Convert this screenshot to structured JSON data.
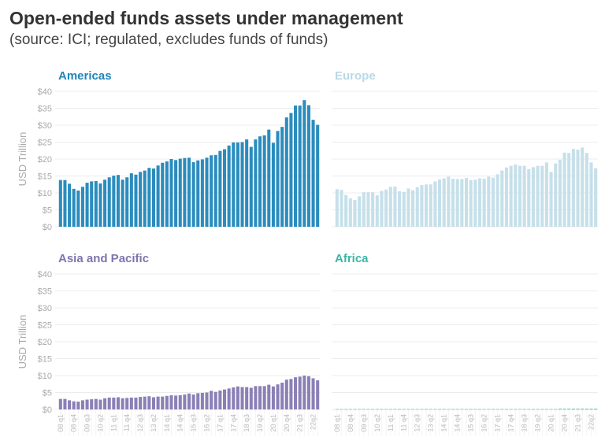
{
  "title": "Open-ended funds assets under management",
  "subtitle": "(source: ICI; regulated, excludes funds of funds)",
  "chart_data": {
    "type": "bar",
    "ylabel": "USD Trillion",
    "ylim": [
      0,
      40
    ],
    "yticks": [
      "$0",
      "$5",
      "$10",
      "$15",
      "$20",
      "$25",
      "$30",
      "$35",
      "$40"
    ],
    "grid": true,
    "x_tick_labels": [
      "08 q1",
      "08 q4",
      "09 q3",
      "10 q2",
      "11 q1",
      "11 q4",
      "12 q3",
      "13 q2",
      "14 q1",
      "14 q4",
      "15 q3",
      "16 q2",
      "17 q1",
      "17 q4",
      "18 q3",
      "19 q2",
      "20 q1",
      "20 q4",
      "21 q3",
      "22q2"
    ],
    "panels": [
      {
        "name": "Americas",
        "color": "#2b8cbe",
        "title_color": "#1f86b8",
        "values": [
          13.8,
          13.8,
          12.7,
          11.2,
          10.7,
          11.8,
          13.0,
          13.4,
          13.5,
          12.8,
          13.9,
          14.6,
          15.1,
          15.3,
          13.9,
          14.6,
          15.8,
          15.4,
          16.2,
          16.6,
          17.4,
          17.2,
          18.1,
          18.9,
          19.3,
          20.0,
          19.7,
          20.1,
          20.3,
          20.4,
          19.1,
          19.6,
          19.9,
          20.4,
          21.1,
          21.2,
          22.4,
          22.9,
          24.0,
          24.9,
          24.9,
          25.0,
          25.8,
          23.6,
          25.8,
          26.7,
          27.0,
          28.7,
          24.8,
          28.3,
          29.5,
          32.3,
          33.6,
          35.8,
          35.8,
          37.4,
          35.9,
          31.6,
          30.1
        ]
      },
      {
        "name": "Europe",
        "color": "#c6e0ea",
        "title_color": "#b9d9e6",
        "values": [
          11.1,
          10.9,
          9.4,
          8.4,
          7.9,
          9.0,
          10.2,
          10.2,
          10.2,
          9.3,
          10.6,
          11.0,
          11.8,
          11.9,
          10.5,
          10.3,
          11.3,
          10.8,
          11.7,
          12.3,
          12.5,
          12.5,
          13.4,
          14.0,
          14.3,
          14.8,
          14.2,
          14.1,
          14.1,
          14.4,
          13.8,
          13.9,
          14.3,
          14.2,
          14.8,
          14.5,
          15.5,
          16.6,
          17.5,
          18.0,
          18.4,
          18.0,
          18.0,
          17.0,
          17.6,
          18.0,
          18.0,
          19.0,
          16.2,
          18.7,
          19.8,
          21.9,
          21.8,
          23.0,
          22.8,
          23.4,
          21.8,
          19.0,
          17.3
        ]
      },
      {
        "name": "Asia and Pacific",
        "color": "#8b80b6",
        "title_color": "#7f74ad",
        "values": [
          3.1,
          3.1,
          2.7,
          2.4,
          2.3,
          2.7,
          2.9,
          3.0,
          3.1,
          2.9,
          3.3,
          3.5,
          3.5,
          3.6,
          3.3,
          3.4,
          3.5,
          3.5,
          3.7,
          3.8,
          3.9,
          3.6,
          3.8,
          3.8,
          4.0,
          4.2,
          4.1,
          4.2,
          4.4,
          4.7,
          4.4,
          4.8,
          4.9,
          5.0,
          5.5,
          5.2,
          5.6,
          5.9,
          6.2,
          6.5,
          6.8,
          6.6,
          6.6,
          6.4,
          6.9,
          6.9,
          6.9,
          7.3,
          6.8,
          7.4,
          7.9,
          8.8,
          9.0,
          9.5,
          9.7,
          10.0,
          9.8,
          9.2,
          8.6
        ]
      },
      {
        "name": "Africa",
        "color": "#3db5a6",
        "title_color": "#3db5a6",
        "values": [
          0.1,
          0.1,
          0.1,
          0.1,
          0.1,
          0.1,
          0.1,
          0.1,
          0.1,
          0.1,
          0.1,
          0.1,
          0.1,
          0.1,
          0.1,
          0.1,
          0.1,
          0.1,
          0.1,
          0.1,
          0.1,
          0.1,
          0.1,
          0.1,
          0.1,
          0.1,
          0.1,
          0.1,
          0.1,
          0.1,
          0.1,
          0.1,
          0.1,
          0.1,
          0.1,
          0.1,
          0.1,
          0.1,
          0.1,
          0.1,
          0.1,
          0.1,
          0.1,
          0.1,
          0.1,
          0.1,
          0.1,
          0.1,
          0.1,
          0.1,
          0.2,
          0.2,
          0.2,
          0.2,
          0.2,
          0.2,
          0.2,
          0.2,
          0.2
        ]
      }
    ]
  }
}
